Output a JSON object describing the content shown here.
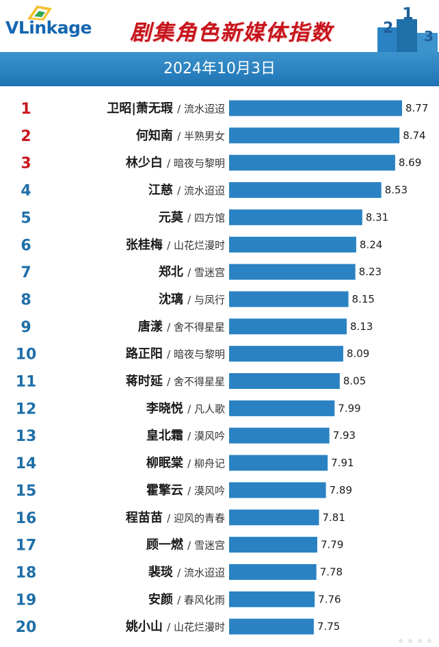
{
  "brand": {
    "logo": "VLinkage"
  },
  "header": {
    "title": "剧集角色新媒体指数",
    "date": "2024年10月3日",
    "podium_labels": [
      "2",
      "1",
      "3"
    ]
  },
  "colors": {
    "bar": "#2a82c2",
    "rank_top": "#c8161e",
    "rank_rest": "#1f6fa8",
    "band": "#2a7fc0",
    "title": "#c7141c"
  },
  "chart_data": {
    "type": "bar",
    "orientation": "horizontal",
    "title": "剧集角色新媒体指数",
    "subtitle": "2024年10月3日",
    "xlim": [
      7.0,
      8.8
    ],
    "grid": false,
    "rows": [
      {
        "rank": "1",
        "name": "卫昭|萧无瑕",
        "drama": "/ 流水迢迢",
        "value": 8.77
      },
      {
        "rank": "2",
        "name": "何知南",
        "drama": "/ 半熟男女",
        "value": 8.74
      },
      {
        "rank": "3",
        "name": "林少白",
        "drama": "/ 暗夜与黎明",
        "value": 8.69
      },
      {
        "rank": "4",
        "name": "江慈",
        "drama": "/ 流水迢迢",
        "value": 8.53
      },
      {
        "rank": "5",
        "name": "元莫",
        "drama": "/ 四方馆",
        "value": 8.31
      },
      {
        "rank": "6",
        "name": "张桂梅",
        "drama": "/ 山花烂漫时",
        "value": 8.24
      },
      {
        "rank": "7",
        "name": "郑北",
        "drama": "/ 雪迷宫",
        "value": 8.23
      },
      {
        "rank": "8",
        "name": "沈璃",
        "drama": "/ 与凤行",
        "value": 8.15
      },
      {
        "rank": "9",
        "name": "唐漾",
        "drama": "/ 舍不得星星",
        "value": 8.13
      },
      {
        "rank": "10",
        "name": "路正阳",
        "drama": "/ 暗夜与黎明",
        "value": 8.09
      },
      {
        "rank": "11",
        "name": "蒋时延",
        "drama": "/ 舍不得星星",
        "value": 8.05
      },
      {
        "rank": "12",
        "name": "李晓悦",
        "drama": "/ 凡人歌",
        "value": 7.99
      },
      {
        "rank": "13",
        "name": "皇北霜",
        "drama": "/ 漠风吟",
        "value": 7.93
      },
      {
        "rank": "14",
        "name": "柳眠棠",
        "drama": "/ 柳舟记",
        "value": 7.91
      },
      {
        "rank": "15",
        "name": "霍擎云",
        "drama": "/ 漠风吟",
        "value": 7.89
      },
      {
        "rank": "16",
        "name": "程苗苗",
        "drama": "/ 迎风的青春",
        "value": 7.81
      },
      {
        "rank": "17",
        "name": "顾一燃",
        "drama": "/ 雪迷宫",
        "value": 7.79
      },
      {
        "rank": "18",
        "name": "裴琰",
        "drama": "/ 流水迢迢",
        "value": 7.78
      },
      {
        "rank": "19",
        "name": "安颜",
        "drama": "/ 春风化雨",
        "value": 7.76
      },
      {
        "rank": "20",
        "name": "姚小山",
        "drama": "/ 山花烂漫时",
        "value": 7.75
      }
    ]
  }
}
